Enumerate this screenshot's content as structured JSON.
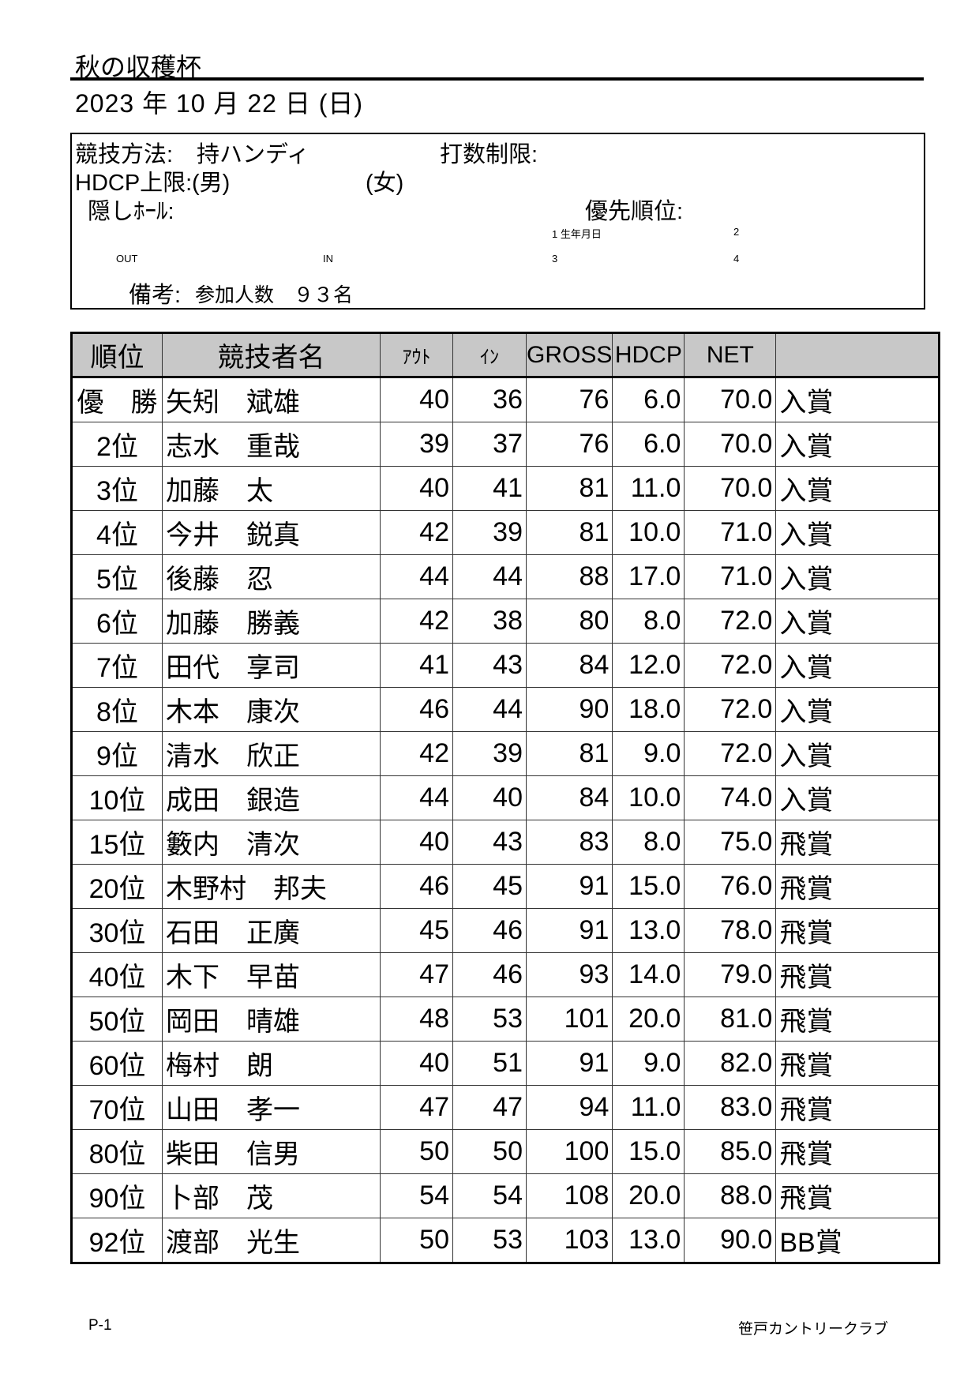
{
  "header": {
    "title": "秋の収穫杯",
    "date": "2023 年 10 月 22 日 (日)"
  },
  "info": {
    "method_label": "競技方法:",
    "method_value": "持ハンディ",
    "stroke_limit_label": "打数制限:",
    "hdcp_limit_label": "HDCP上限:",
    "hdcp_male": "(男)",
    "hdcp_female": "(女)",
    "hidden_holes_label": "隠しﾎｰﾙ:",
    "priority_label": "優先順位:",
    "priority_1": "1 生年月日",
    "priority_2": "2",
    "priority_3": "3",
    "priority_4": "4",
    "out_label": "OUT",
    "in_label": "IN",
    "remarks_label": "備考:",
    "remarks_value": "参加人数　９３名"
  },
  "table": {
    "columns": [
      "順位",
      "競技者名",
      "ｱｳﾄ",
      "ｲﾝ",
      "GROSS",
      "HDCP",
      "NET",
      ""
    ],
    "rows": [
      [
        "優　勝",
        "矢矧　斌雄",
        "40",
        "36",
        "76",
        "6.0",
        "70.0",
        "入賞"
      ],
      [
        "2位",
        "志水　重哉",
        "39",
        "37",
        "76",
        "6.0",
        "70.0",
        "入賞"
      ],
      [
        "3位",
        "加藤　太",
        "40",
        "41",
        "81",
        "11.0",
        "70.0",
        "入賞"
      ],
      [
        "4位",
        "今井　鋭真",
        "42",
        "39",
        "81",
        "10.0",
        "71.0",
        "入賞"
      ],
      [
        "5位",
        "後藤　忍",
        "44",
        "44",
        "88",
        "17.0",
        "71.0",
        "入賞"
      ],
      [
        "6位",
        "加藤　勝義",
        "42",
        "38",
        "80",
        "8.0",
        "72.0",
        "入賞"
      ],
      [
        "7位",
        "田代　享司",
        "41",
        "43",
        "84",
        "12.0",
        "72.0",
        "入賞"
      ],
      [
        "8位",
        "木本　康次",
        "46",
        "44",
        "90",
        "18.0",
        "72.0",
        "入賞"
      ],
      [
        "9位",
        "清水　欣正",
        "42",
        "39",
        "81",
        "9.0",
        "72.0",
        "入賞"
      ],
      [
        "10位",
        "成田　銀造",
        "44",
        "40",
        "84",
        "10.0",
        "74.0",
        "入賞"
      ],
      [
        "15位",
        "籔内　清次",
        "40",
        "43",
        "83",
        "8.0",
        "75.0",
        "飛賞"
      ],
      [
        "20位",
        "木野村　邦夫",
        "46",
        "45",
        "91",
        "15.0",
        "76.0",
        "飛賞"
      ],
      [
        "30位",
        "石田　正廣",
        "45",
        "46",
        "91",
        "13.0",
        "78.0",
        "飛賞"
      ],
      [
        "40位",
        "木下　早苗",
        "47",
        "46",
        "93",
        "14.0",
        "79.0",
        "飛賞"
      ],
      [
        "50位",
        "岡田　晴雄",
        "48",
        "53",
        "101",
        "20.0",
        "81.0",
        "飛賞"
      ],
      [
        "60位",
        "梅村　朗",
        "40",
        "51",
        "91",
        "9.0",
        "82.0",
        "飛賞"
      ],
      [
        "70位",
        "山田　孝一",
        "47",
        "47",
        "94",
        "11.0",
        "83.0",
        "飛賞"
      ],
      [
        "80位",
        "柴田　信男",
        "50",
        "50",
        "100",
        "15.0",
        "85.0",
        "飛賞"
      ],
      [
        "90位",
        "卜部　茂",
        "54",
        "54",
        "108",
        "20.0",
        "88.0",
        "飛賞"
      ],
      [
        "92位",
        "渡部　光生",
        "50",
        "53",
        "103",
        "13.0",
        "90.0",
        "BB賞"
      ]
    ]
  },
  "footer": {
    "page": "P-1",
    "club": "笹戸カントリークラブ"
  }
}
